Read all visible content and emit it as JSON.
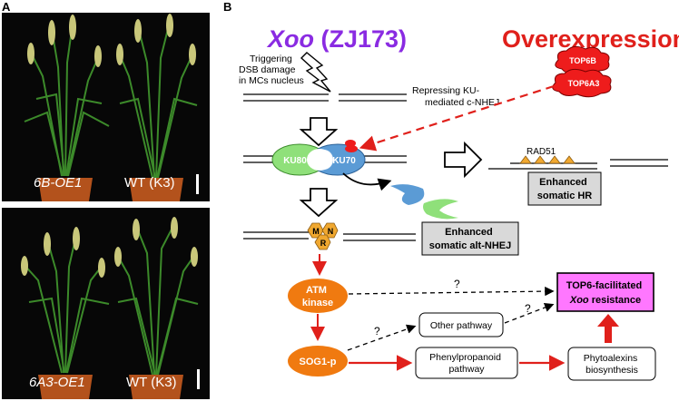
{
  "panel_a": {
    "letter": "A",
    "top_photo": {
      "left_label": "6B-OE1",
      "right_label": "WT (K3)"
    },
    "bottom_photo": {
      "left_label": "6A3-OE1",
      "right_label": "WT (K3)"
    }
  },
  "panel_b": {
    "letter": "B",
    "xoo_title": "Xoo",
    "xoo_strain": " (ZJ173)",
    "overexpression_title": "Overexpression",
    "trigger_text": [
      "Triggering",
      "DSB damage",
      "in MCs nucleus"
    ],
    "repress_text": [
      "Repressing KU-",
      "mediated c-NHEJ"
    ],
    "top6b": "TOP6B",
    "top6a3": "TOP6A3",
    "ku80": "KU80",
    "ku70": "KU70",
    "rad51": "RAD51",
    "hr_box": [
      "Enhanced",
      "somatic HR"
    ],
    "mrn": {
      "m": "M",
      "n": "N",
      "r": "R"
    },
    "alt_nhej_box": [
      "Enhanced",
      "somatic alt-NHEJ"
    ],
    "atm": [
      "ATM",
      "kinase"
    ],
    "sog1": "SOG1-p",
    "other_pathway": "Other pathway",
    "phenylpropanoid": [
      "Phenylpropanoid",
      "pathway"
    ],
    "phytoalexins": [
      "Phytoalexins",
      "biosynthesis"
    ],
    "resistance": [
      "TOP6-facilitated",
      "Xoo",
      " resistance"
    ],
    "question_marks": [
      "?",
      "?",
      "?"
    ],
    "colors": {
      "purple": "#8a2be2",
      "red": "#e0201b",
      "orange": "#f07a10",
      "magenta_box": "#ff77ff",
      "ku80_green": "#8fe07a",
      "ku70_blue": "#5b9bd5",
      "gray_box": "#d9d9d9",
      "gold": "#f0a830"
    }
  }
}
